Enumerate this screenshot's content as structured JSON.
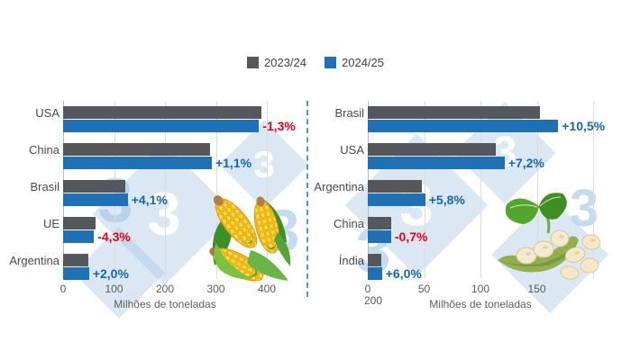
{
  "legend": {
    "items": [
      {
        "label": "2023/24",
        "color": "#54575c"
      },
      {
        "label": "2024/25",
        "color": "#1f70b4"
      }
    ]
  },
  "colors": {
    "series_2023_24": "#54575c",
    "series_2024_25": "#1f70b4",
    "positive_change": "#1565af",
    "negative_change": "#e60013",
    "divider": "#4e96cf",
    "gridline": "#dcdcdc",
    "watermark_blue": "#a0c3e2"
  },
  "watermark": {
    "glyph": "3"
  },
  "illustrations": {
    "left": "corn-illustration",
    "right": "soybean-illustration"
  },
  "chart_data": [
    {
      "type": "bar",
      "orientation": "horizontal",
      "subject": "corn production",
      "categories": [
        "USA",
        "China",
        "Brasil",
        "UE",
        "Argentina"
      ],
      "series": [
        {
          "name": "2023/24",
          "values": [
            389.7,
            288.8,
            122,
            63.3,
            50
          ]
        },
        {
          "name": "2024/25",
          "values": [
            384.6,
            292,
            127,
            60.6,
            51
          ]
        }
      ],
      "change_labels": [
        "-1,3%",
        "+1,1%",
        "+4,1%",
        "-4,3%",
        "+2,0%"
      ],
      "xlabel": "Milhões de toneladas",
      "xlim": [
        0,
        400
      ],
      "xticks": [
        0,
        100,
        200,
        300,
        400
      ],
      "gridline_values": [
        0,
        100,
        200,
        300,
        400
      ],
      "wrapped_tick": null,
      "grid": true,
      "legend_position": "top-center"
    },
    {
      "type": "bar",
      "orientation": "horizontal",
      "subject": "soybean production",
      "categories": [
        "Brasil",
        "USA",
        "Argentina",
        "China",
        "Índia"
      ],
      "series": [
        {
          "name": "2023/24",
          "values": [
            153,
            113.3,
            48.2,
            20.8,
            11.9
          ]
        },
        {
          "name": "2024/25",
          "values": [
            169,
            121.4,
            51,
            20.7,
            12.6
          ]
        }
      ],
      "change_labels": [
        "+10,5%",
        "+7,2%",
        "+5,8%",
        "-0,7%",
        "+6,0%"
      ],
      "xlabel": "Milhões de toneladas",
      "xlim": [
        0,
        200
      ],
      "xticks": [
        0,
        50,
        100,
        150
      ],
      "gridline_values": [
        0,
        50,
        100,
        150,
        200
      ],
      "wrapped_tick": "200",
      "grid": true,
      "legend_position": "top-center"
    }
  ]
}
